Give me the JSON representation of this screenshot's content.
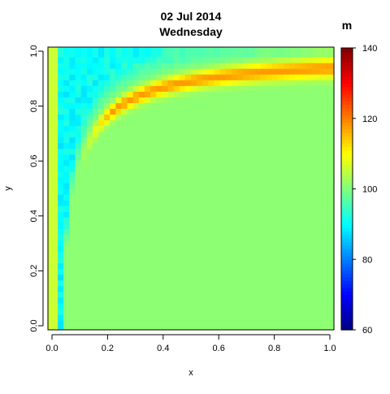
{
  "chart_data": {
    "type": "heatmap",
    "title_line1": "02 Jul 2014",
    "title_line2": "Wednesday",
    "xlabel": "x",
    "ylabel": "y",
    "xlim": [
      0.0,
      1.0
    ],
    "ylim": [
      0.0,
      1.0
    ],
    "x_ticks": [
      "0.0",
      "0.2",
      "0.4",
      "0.6",
      "0.8",
      "1.0"
    ],
    "y_ticks": [
      "0.0",
      "0.2",
      "0.4",
      "0.6",
      "0.8",
      "1.0"
    ],
    "grid": false,
    "colorbar": {
      "label": "m",
      "min": 60,
      "max": 140,
      "ticks": [
        "60",
        "80",
        "100",
        "120",
        "140"
      ],
      "colormap": "jet",
      "colors": [
        "#00007f",
        "#0000ff",
        "#007fff",
        "#00ffff",
        "#7fff7f",
        "#ffff00",
        "#ff7f00",
        "#ff0000",
        "#7f0000"
      ]
    },
    "field_description": {
      "background_value": 101,
      "ridge": {
        "curve": "y = 1 - 0.06/x^0.85 (approx.)",
        "peak_value": 118,
        "x_range": [
          0.15,
          1.0
        ]
      },
      "low_region": {
        "location": "upper-left, above ridge",
        "min_value": 90
      },
      "left_edge_value": 106,
      "grid_cells": 48
    }
  }
}
